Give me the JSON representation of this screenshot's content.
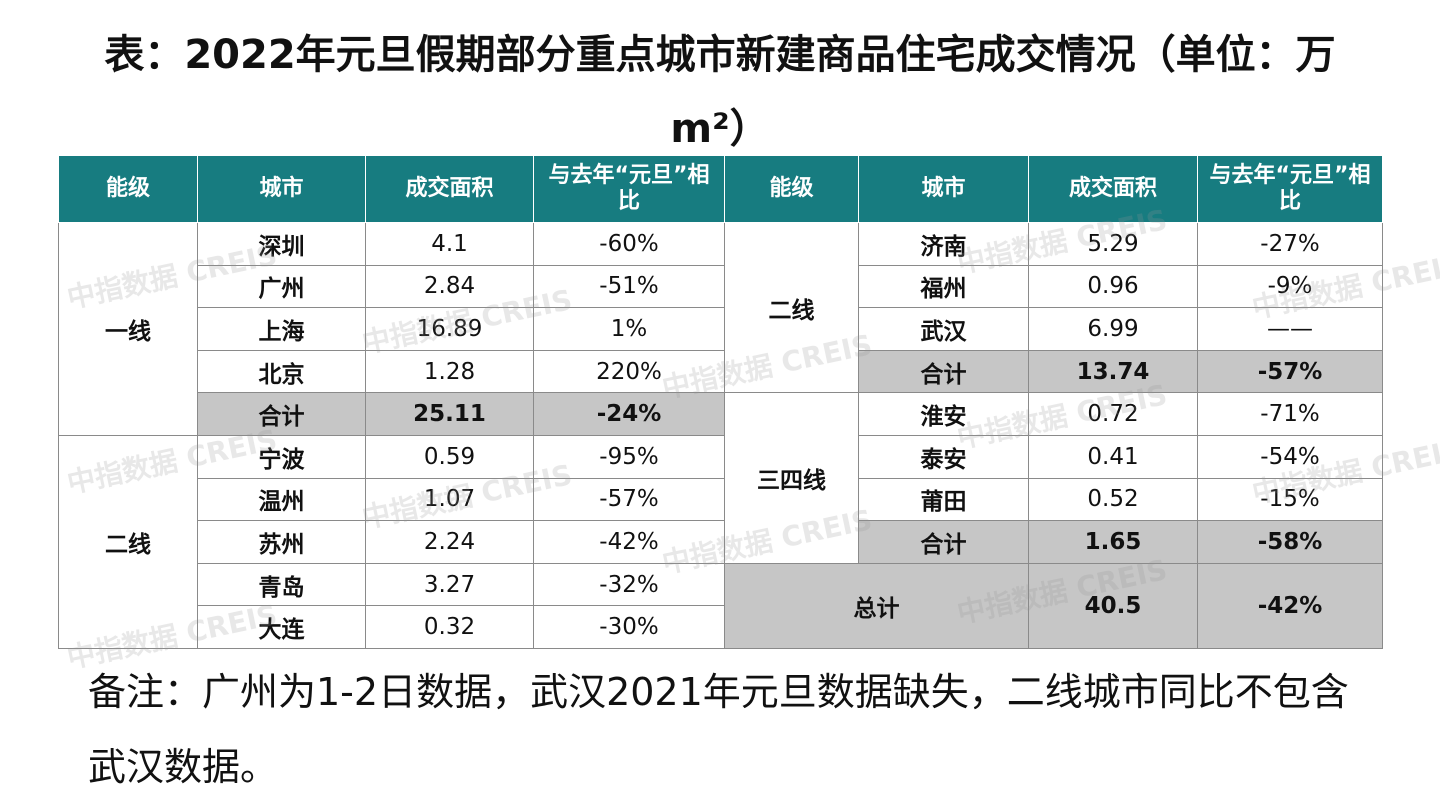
{
  "title": "表：2022年元旦假期部分重点城市新建商品住宅成交情况（单位：万m²）",
  "header": [
    "能级",
    "城市",
    "成交面积",
    "与去年“元旦”相比",
    "能级",
    "城市",
    "成交面积",
    "与去年“元旦”相比"
  ],
  "left": [
    {
      "tier": "一线",
      "rows": [
        [
          "深圳",
          "4.1",
          "-60%"
        ],
        [
          "广州",
          "2.84",
          "-51%"
        ],
        [
          "上海",
          "16.89",
          "1%"
        ],
        [
          "北京",
          "1.28",
          "220%"
        ],
        [
          "合计",
          "25.11",
          "-24%"
        ]
      ]
    },
    {
      "tier": "二线",
      "rows": [
        [
          "宁波",
          "0.59",
          "-95%"
        ],
        [
          "温州",
          "1.07",
          "-57%"
        ],
        [
          "苏州",
          "2.24",
          "-42%"
        ],
        [
          "青岛",
          "3.27",
          "-32%"
        ],
        [
          "大连",
          "0.32",
          "-30%"
        ]
      ]
    }
  ],
  "right": [
    {
      "tier": "二线",
      "rows": [
        [
          "济南",
          "5.29",
          "-27%"
        ],
        [
          "福州",
          "0.96",
          "-9%"
        ],
        [
          "武汉",
          "6.99",
          "——"
        ],
        [
          "合计",
          "13.74",
          "-57%"
        ]
      ]
    },
    {
      "tier": "三四线",
      "rows": [
        [
          "淮安",
          "0.72",
          "-71%"
        ],
        [
          "泰安",
          "0.41",
          "-54%"
        ],
        [
          "莆田",
          "0.52",
          "-15%"
        ],
        [
          "合计",
          "1.65",
          "-58%"
        ]
      ]
    }
  ],
  "total": [
    "总计",
    "40.5",
    "-42%"
  ],
  "watermark": "中指数据 CREIS",
  "note": "备注：广州为1-2日数据，武汉2021年元旦数据缺失，二线城市同比不包含武汉数据。"
}
